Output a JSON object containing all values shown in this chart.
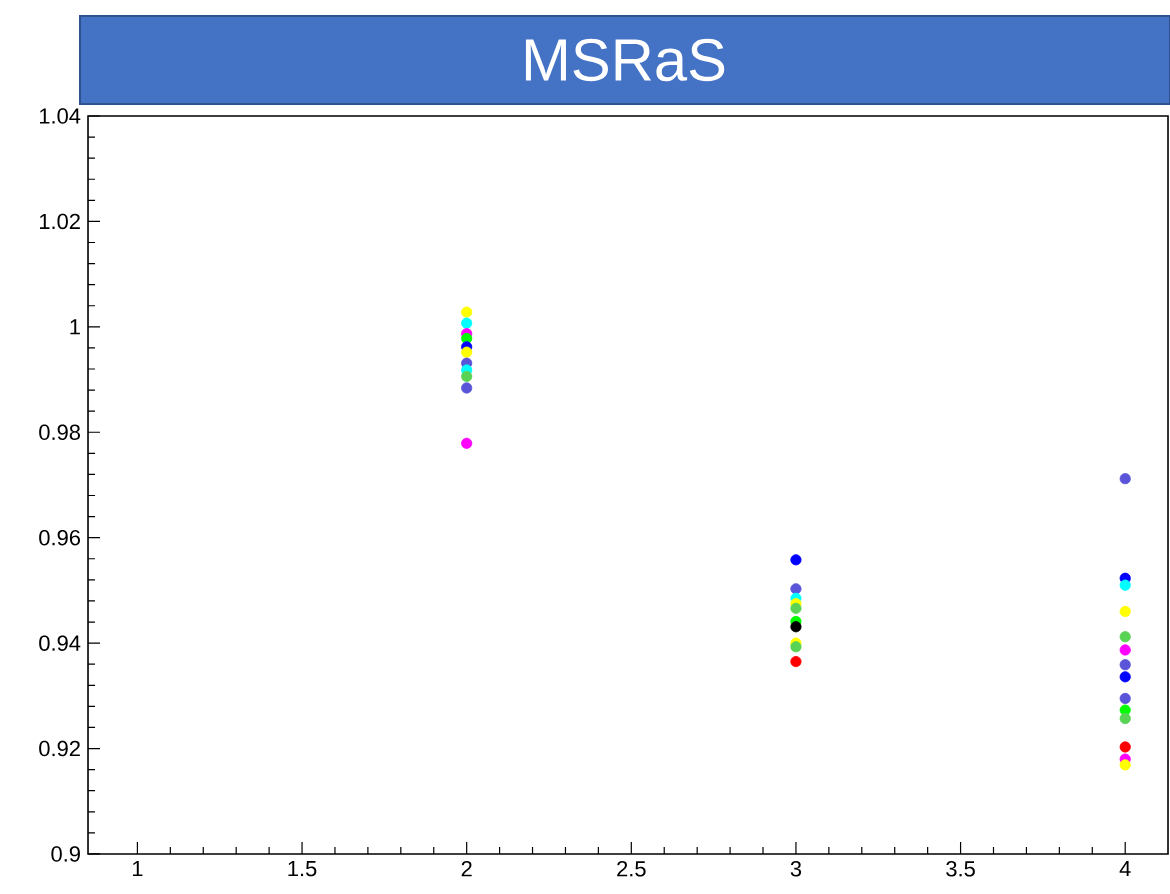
{
  "chart_data": {
    "type": "scatter",
    "title": "MSRaS",
    "series": [
      {
        "x": [
          2,
          2,
          2,
          2,
          2,
          2,
          2,
          2,
          2,
          2,
          2,
          3,
          3,
          3,
          3,
          3,
          3,
          3,
          3,
          3,
          3,
          4,
          4,
          4,
          4,
          4,
          4,
          4,
          4,
          4,
          4,
          4,
          4,
          4,
          4
        ],
        "values": [
          1.0028,
          1.0007,
          0.9987,
          0.9978,
          0.9962,
          0.9952,
          0.9931,
          0.9918,
          0.9906,
          0.9884,
          0.9779,
          0.9558,
          0.9503,
          0.9485,
          0.9475,
          0.9466,
          0.9441,
          0.9431,
          0.94,
          0.9393,
          0.9365,
          0.9712,
          0.9523,
          0.951,
          0.946,
          0.9412,
          0.9387,
          0.9359,
          0.9336,
          0.9295,
          0.9273,
          0.9257,
          0.9203,
          0.918,
          0.9169
        ],
        "colors": [
          "#ffff00",
          "#00ffff",
          "#ff00ff",
          "#00ff00",
          "#0000ff",
          "#ffff00",
          "#5954d8",
          "#00ffff",
          "#59d354",
          "#5954d8",
          "#ff00ff",
          "#0000ff",
          "#5954d8",
          "#00ffff",
          "#ffff00",
          "#59d354",
          "#00ff00",
          "#000000",
          "#ffff00",
          "#59d354",
          "#ff0000",
          "#5954d8",
          "#0000ff",
          "#00ffff",
          "#ffff00",
          "#59d354",
          "#ff00ff",
          "#5954d8",
          "#0000ff",
          "#5954d8",
          "#00ff00",
          "#59d354",
          "#ff0000",
          "#ff00ff",
          "#ffff00"
        ]
      }
    ],
    "xlim": [
      0.85,
      4.13
    ],
    "ylim": [
      0.9,
      1.04
    ],
    "xticks": [
      1,
      1.5,
      2,
      2.5,
      3,
      3.5,
      4
    ],
    "yticks": [
      0.9,
      0.92,
      0.94,
      0.96,
      0.98,
      1,
      1.02,
      1.04
    ],
    "marker": "circle"
  }
}
